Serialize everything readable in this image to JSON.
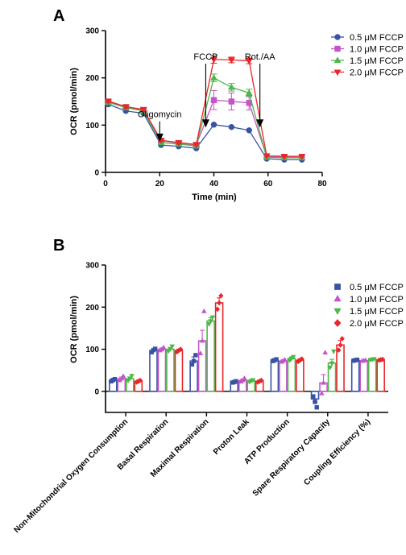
{
  "chart_data": [
    {
      "type": "line",
      "panel": "A",
      "ylabel": "OCR (pmol/min)",
      "xlabel": "Time (min)",
      "xlim": [
        0,
        80
      ],
      "ylim": [
        0,
        300
      ],
      "xticks": [
        0,
        20,
        40,
        60,
        80
      ],
      "yticks": [
        0,
        100,
        200,
        300
      ],
      "legend_position": "top-right",
      "x": [
        1,
        7.5,
        14,
        20.5,
        27,
        33.5,
        40,
        46.5,
        53,
        59.5,
        66,
        72.5
      ],
      "series": [
        {
          "name": "0.5 μM FCCP",
          "color": "#3953a4",
          "marker": "circle",
          "values": [
            144,
            130,
            125,
            58,
            55,
            51,
            101,
            96,
            89,
            29,
            27,
            27
          ],
          "errors": [
            2,
            2,
            2,
            2,
            2,
            2,
            2,
            2,
            2,
            1,
            1,
            1
          ]
        },
        {
          "name": "1.0 μM FCCP",
          "color": "#c455c7",
          "marker": "square",
          "values": [
            149,
            138,
            132,
            67,
            62,
            58,
            153,
            150,
            147,
            33,
            32,
            32
          ],
          "errors": [
            3,
            3,
            3,
            3,
            3,
            3,
            20,
            18,
            15,
            2,
            2,
            2
          ]
        },
        {
          "name": "1.5 μM FCCP",
          "color": "#4cb848",
          "marker": "triangle-up",
          "values": [
            148,
            137,
            130,
            63,
            60,
            56,
            200,
            180,
            168,
            32,
            31,
            31
          ],
          "errors": [
            3,
            3,
            3,
            3,
            3,
            3,
            8,
            8,
            8,
            2,
            2,
            2
          ]
        },
        {
          "name": "2.0 μM FCCP",
          "color": "#e8262b",
          "marker": "triangle-down",
          "values": [
            151,
            139,
            133,
            68,
            63,
            59,
            239,
            238,
            236,
            35,
            34,
            34
          ],
          "errors": [
            3,
            3,
            3,
            3,
            3,
            3,
            8,
            6,
            6,
            2,
            2,
            2
          ]
        }
      ],
      "annotations": [
        {
          "text": "Oligomycin",
          "x": 20,
          "y": 108
        },
        {
          "text": "FCCP",
          "x": 37,
          "y": 230
        },
        {
          "text": "Rot./AA",
          "x": 57,
          "y": 230
        }
      ]
    },
    {
      "type": "bar",
      "panel": "B",
      "ylabel": "OCR (pmol/min)",
      "ylim": [
        -50,
        300
      ],
      "yticks": [
        0,
        100,
        200,
        300
      ],
      "legend_position": "top-right",
      "categories": [
        "Non-Mitochondrial Oxygen Consumption",
        "Basal Respiration",
        "Maximal Respiration",
        "Proton Leak",
        "ATP Production",
        "Spare Respiratory Capacity",
        "Coupling Efficiency (%)"
      ],
      "series": [
        {
          "name": "0.5 μM FCCP",
          "color": "#3953a4",
          "marker": "square",
          "values": [
            26,
            97,
            72,
            22,
            74,
            -18,
            74
          ],
          "errors": [
            3,
            3,
            10,
            2,
            3,
            6,
            1
          ],
          "points": [
            [
              24,
              27,
              29
            ],
            [
              93,
              98,
              101
            ],
            [
              64,
              72,
              86
            ],
            [
              21,
              22,
              24
            ],
            [
              72,
              74,
              76
            ],
            [
              -12,
              -25,
              -38
            ],
            [
              73,
              74,
              75
            ]
          ]
        },
        {
          "name": "1.0 μM FCCP",
          "color": "#c455c7",
          "marker": "triangle-up",
          "values": [
            30,
            100,
            120,
            26,
            72,
            20,
            73
          ],
          "errors": [
            4,
            3,
            25,
            3,
            3,
            20,
            1
          ],
          "points": [
            [
              26,
              30,
              36
            ],
            [
              97,
              100,
              104
            ],
            [
              90,
              120,
              190
            ],
            [
              23,
              26,
              31
            ],
            [
              70,
              72,
              75
            ],
            [
              -5,
              20,
              92
            ],
            [
              72,
              73,
              74
            ]
          ]
        },
        {
          "name": "1.5 μM FCCP",
          "color": "#4cb848",
          "marker": "triangle-down",
          "values": [
            30,
            100,
            167,
            25,
            78,
            67,
            76
          ],
          "errors": [
            4,
            4,
            8,
            2,
            4,
            9,
            1
          ],
          "points": [
            [
              26,
              31,
              37
            ],
            [
              96,
              101,
              107
            ],
            [
              160,
              167,
              176
            ],
            [
              23,
              25,
              27
            ],
            [
              74,
              78,
              82
            ],
            [
              57,
              67,
              95
            ],
            [
              75,
              76,
              77
            ]
          ]
        },
        {
          "name": "2.0 μM FCCP",
          "color": "#e8262b",
          "marker": "diamond",
          "values": [
            24,
            97,
            210,
            24,
            74,
            110,
            75
          ],
          "errors": [
            2,
            3,
            12,
            2,
            3,
            11,
            1
          ],
          "points": [
            [
              22,
              24,
              26
            ],
            [
              94,
              97,
              100
            ],
            [
              195,
              210,
              227
            ],
            [
              22,
              24,
              26
            ],
            [
              71,
              74,
              77
            ],
            [
              98,
              110,
              125
            ],
            [
              74,
              75,
              76
            ]
          ]
        }
      ]
    }
  ]
}
